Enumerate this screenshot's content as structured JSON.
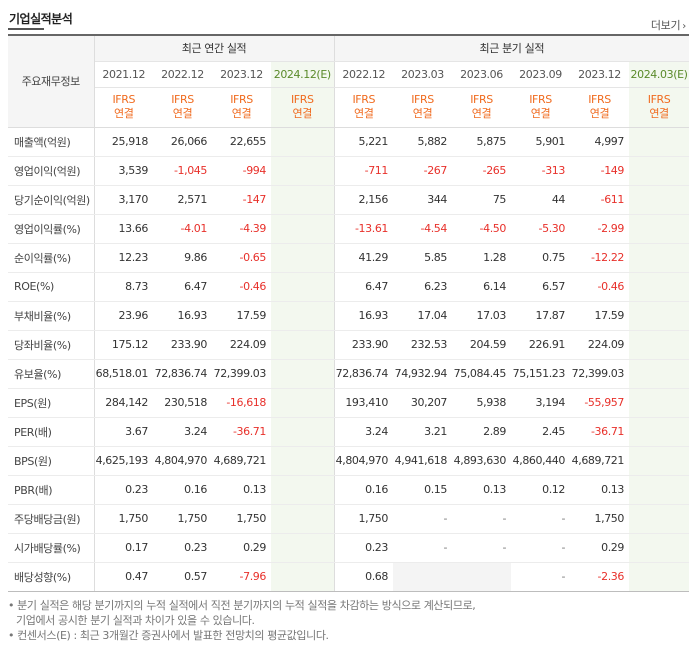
{
  "header": {
    "title": "기업실적분석",
    "more_label": "더보기"
  },
  "table": {
    "metric_header": "주요재무정보",
    "annual_group": "최근 연간 실적",
    "quarter_group": "최근 분기 실적",
    "annual_periods": [
      "2021.12",
      "2022.12",
      "2023.12",
      "2024.12(E)"
    ],
    "quarter_periods": [
      "2022.12",
      "2023.03",
      "2023.06",
      "2023.09",
      "2023.12",
      "2024.03(E)"
    ],
    "ifrs_top": "IFRS",
    "ifrs_bottom": "연결",
    "rows": [
      {
        "label": "매출액(억원)",
        "annual": [
          "25,918",
          "26,066",
          "22,655",
          ""
        ],
        "quarter": [
          "5,221",
          "5,882",
          "5,875",
          "5,901",
          "4,997",
          ""
        ]
      },
      {
        "label": "영업이익(억원)",
        "annual": [
          "3,539",
          "-1,045",
          "-994",
          ""
        ],
        "quarter": [
          "-711",
          "-267",
          "-265",
          "-313",
          "-149",
          ""
        ]
      },
      {
        "label": "당기순이익(억원)",
        "annual": [
          "3,170",
          "2,571",
          "-147",
          ""
        ],
        "quarter": [
          "2,156",
          "344",
          "75",
          "44",
          "-611",
          ""
        ]
      },
      {
        "label": "영업이익률(%)",
        "annual": [
          "13.66",
          "-4.01",
          "-4.39",
          ""
        ],
        "quarter": [
          "-13.61",
          "-4.54",
          "-4.50",
          "-5.30",
          "-2.99",
          ""
        ]
      },
      {
        "label": "순이익률(%)",
        "annual": [
          "12.23",
          "9.86",
          "-0.65",
          ""
        ],
        "quarter": [
          "41.29",
          "5.85",
          "1.28",
          "0.75",
          "-12.22",
          ""
        ]
      },
      {
        "label": "ROE(%)",
        "annual": [
          "8.73",
          "6.47",
          "-0.46",
          ""
        ],
        "quarter": [
          "6.47",
          "6.23",
          "6.14",
          "6.57",
          "-0.46",
          ""
        ]
      },
      {
        "label": "부채비율(%)",
        "annual": [
          "23.96",
          "16.93",
          "17.59",
          ""
        ],
        "quarter": [
          "16.93",
          "17.04",
          "17.03",
          "17.87",
          "17.59",
          ""
        ]
      },
      {
        "label": "당좌비율(%)",
        "annual": [
          "175.12",
          "233.90",
          "224.09",
          ""
        ],
        "quarter": [
          "233.90",
          "232.53",
          "204.59",
          "226.91",
          "224.09",
          ""
        ]
      },
      {
        "label": "유보율(%)",
        "annual": [
          "68,518.01",
          "72,836.74",
          "72,399.03",
          ""
        ],
        "quarter": [
          "72,836.74",
          "74,932.94",
          "75,084.45",
          "75,151.23",
          "72,399.03",
          ""
        ]
      },
      {
        "label": "EPS(원)",
        "annual": [
          "284,142",
          "230,518",
          "-16,618",
          ""
        ],
        "quarter": [
          "193,410",
          "30,207",
          "5,938",
          "3,194",
          "-55,957",
          ""
        ]
      },
      {
        "label": "PER(배)",
        "annual": [
          "3.67",
          "3.24",
          "-36.71",
          ""
        ],
        "quarter": [
          "3.24",
          "3.21",
          "2.89",
          "2.45",
          "-36.71",
          ""
        ]
      },
      {
        "label": "BPS(원)",
        "annual": [
          "4,625,193",
          "4,804,970",
          "4,689,721",
          ""
        ],
        "quarter": [
          "4,804,970",
          "4,941,618",
          "4,893,630",
          "4,860,440",
          "4,689,721",
          ""
        ]
      },
      {
        "label": "PBR(배)",
        "annual": [
          "0.23",
          "0.16",
          "0.13",
          ""
        ],
        "quarter": [
          "0.16",
          "0.15",
          "0.13",
          "0.12",
          "0.13",
          ""
        ]
      },
      {
        "label": "주당배당금(원)",
        "annual": [
          "1,750",
          "1,750",
          "1,750",
          ""
        ],
        "quarter": [
          "1,750",
          "-",
          "-",
          "-",
          "1,750",
          ""
        ]
      },
      {
        "label": "시가배당률(%)",
        "annual": [
          "0.17",
          "0.23",
          "0.29",
          ""
        ],
        "quarter": [
          "0.23",
          "-",
          "-",
          "-",
          "0.29",
          ""
        ]
      },
      {
        "label": "배당성향(%)",
        "annual": [
          "0.47",
          "0.57",
          "-7.96",
          ""
        ],
        "quarter": [
          "0.68",
          "",
          "",
          "-",
          "-2.36",
          ""
        ]
      }
    ]
  },
  "notes": {
    "line1": "• 분기 실적은 해당 분기까지의 누적 실적에서 직전 분기까지의 누적 실적을 차감하는 방식으로 계산되므로,",
    "line2": "기업에서 공시한 분기 실적과 차이가 있을 수 있습니다.",
    "line3": "• 컨센서스(E) : 최근 3개월간 증권사에서 발표한 전망치의 평균값입니다."
  },
  "colors": {
    "negative": "#e8302a",
    "ifrs": "#f06b1f",
    "estimate_bg": "#f3f8ef",
    "estimate_text": "#5a8a2a"
  }
}
